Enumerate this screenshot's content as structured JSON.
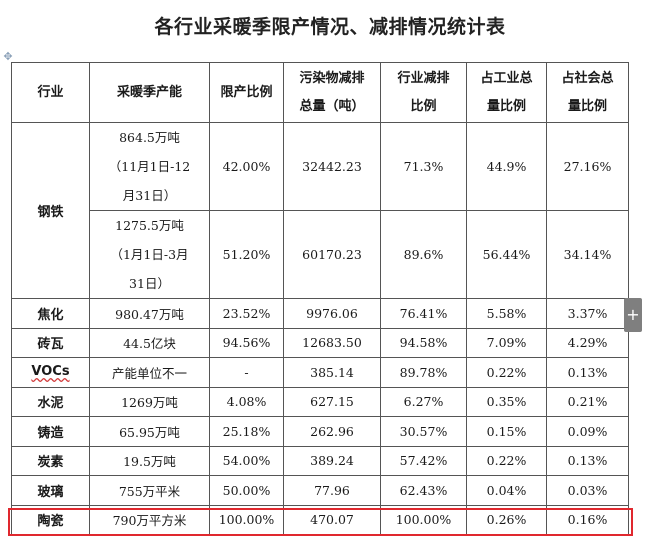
{
  "title": "各行业采暖季限产情况、减排情况统计表",
  "table": {
    "headers": [
      [
        "行业"
      ],
      [
        "采暖季产能"
      ],
      [
        "限产比例"
      ],
      [
        "污染物减排",
        "总量（吨）"
      ],
      [
        "行业减排",
        "比例"
      ],
      [
        "占工业总",
        "量比例"
      ],
      [
        "占社会总",
        "量比例"
      ]
    ],
    "steel": {
      "industry": "钢铁",
      "rows": [
        {
          "capacity": [
            "864.5万吨",
            "（11月1日-12",
            "月31日）"
          ],
          "limit": "42.00%",
          "reduction": "32442.23",
          "industry_ratio": "71.3%",
          "industrial_share": "44.9%",
          "social_share": "27.16%"
        },
        {
          "capacity": [
            "1275.5万吨",
            "（1月1日-3月",
            "31日）"
          ],
          "limit": "51.20%",
          "reduction": "60170.23",
          "industry_ratio": "89.6%",
          "industrial_share": "56.44%",
          "social_share": "34.14%"
        }
      ]
    },
    "rows": [
      {
        "industry": "焦化",
        "capacity": "980.47万吨",
        "limit": "23.52%",
        "reduction": "9976.06",
        "industry_ratio": "76.41%",
        "industrial_share": "5.58%",
        "social_share": "3.37%"
      },
      {
        "industry": "砖瓦",
        "capacity": "44.5亿块",
        "limit": "94.56%",
        "reduction": "12683.50",
        "industry_ratio": "94.58%",
        "industrial_share": "7.09%",
        "social_share": "4.29%"
      },
      {
        "industry": "VOCs",
        "capacity": "产能单位不一",
        "limit": "-",
        "reduction": "385.14",
        "industry_ratio": "89.78%",
        "industrial_share": "0.22%",
        "social_share": "0.13%"
      },
      {
        "industry": "水泥",
        "capacity": "1269万吨",
        "limit": "4.08%",
        "reduction": "627.15",
        "industry_ratio": "6.27%",
        "industrial_share": "0.35%",
        "social_share": "0.21%"
      },
      {
        "industry": "铸造",
        "capacity": "65.95万吨",
        "limit": "25.18%",
        "reduction": "262.96",
        "industry_ratio": "30.57%",
        "industrial_share": "0.15%",
        "social_share": "0.09%"
      },
      {
        "industry": "炭素",
        "capacity": "19.5万吨",
        "limit": "54.00%",
        "reduction": "389.24",
        "industry_ratio": "57.42%",
        "industrial_share": "0.22%",
        "social_share": "0.13%"
      },
      {
        "industry": "玻璃",
        "capacity": "755万平米",
        "limit": "50.00%",
        "reduction": "77.96",
        "industry_ratio": "62.43%",
        "industrial_share": "0.04%",
        "social_share": "0.03%"
      },
      {
        "industry": "陶瓷",
        "capacity": "790万平方米",
        "limit": "100.00%",
        "reduction": "470.07",
        "industry_ratio": "100.00%",
        "industrial_share": "0.26%",
        "social_share": "0.16%"
      }
    ]
  },
  "ui": {
    "move_handle_icon": "move-handle-icon",
    "add_icon": "plus-icon",
    "highlight_color": "#e0282e"
  }
}
